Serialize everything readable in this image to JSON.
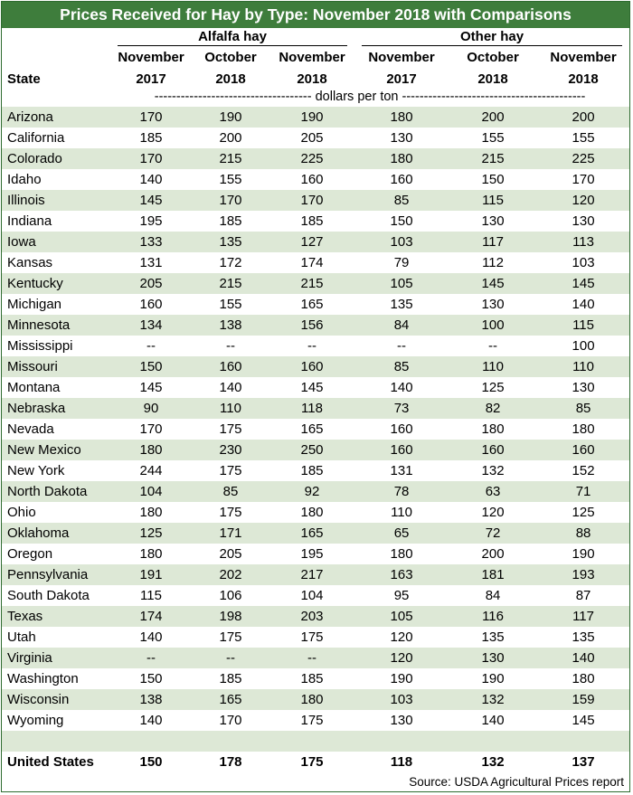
{
  "chart_data": {
    "type": "table",
    "title": "Prices Received for Hay by Type: November 2018 with Comparisons",
    "groups": [
      {
        "label": "Alfalfa hay"
      },
      {
        "label": "Other hay"
      }
    ],
    "state_header": "State",
    "columns": [
      {
        "line1": "November",
        "line2": "2017"
      },
      {
        "line1": "October",
        "line2": "2018"
      },
      {
        "line1": "November",
        "line2": "2018"
      },
      {
        "line1": "November",
        "line2": "2017"
      },
      {
        "line1": "October",
        "line2": "2018"
      },
      {
        "line1": "November",
        "line2": "2018"
      }
    ],
    "units": "------------------------------------ dollars per ton ------------------------------------------",
    "rows": [
      {
        "state": "Arizona",
        "v": [
          "170",
          "190",
          "190",
          "180",
          "200",
          "200"
        ]
      },
      {
        "state": "California",
        "v": [
          "185",
          "200",
          "205",
          "130",
          "155",
          "155"
        ]
      },
      {
        "state": "Colorado",
        "v": [
          "170",
          "215",
          "225",
          "180",
          "215",
          "225"
        ]
      },
      {
        "state": "Idaho",
        "v": [
          "140",
          "155",
          "160",
          "160",
          "150",
          "170"
        ]
      },
      {
        "state": "Illinois",
        "v": [
          "145",
          "170",
          "170",
          "85",
          "115",
          "120"
        ]
      },
      {
        "state": "Indiana",
        "v": [
          "195",
          "185",
          "185",
          "150",
          "130",
          "130"
        ]
      },
      {
        "state": "Iowa",
        "v": [
          "133",
          "135",
          "127",
          "103",
          "117",
          "113"
        ]
      },
      {
        "state": "Kansas",
        "v": [
          "131",
          "172",
          "174",
          "79",
          "112",
          "103"
        ]
      },
      {
        "state": "Kentucky",
        "v": [
          "205",
          "215",
          "215",
          "105",
          "145",
          "145"
        ]
      },
      {
        "state": "Michigan",
        "v": [
          "160",
          "155",
          "165",
          "135",
          "130",
          "140"
        ]
      },
      {
        "state": "Minnesota",
        "v": [
          "134",
          "138",
          "156",
          "84",
          "100",
          "115"
        ]
      },
      {
        "state": "Mississippi",
        "v": [
          "--",
          "--",
          "--",
          "--",
          "--",
          "100"
        ]
      },
      {
        "state": "Missouri",
        "v": [
          "150",
          "160",
          "160",
          "85",
          "110",
          "110"
        ]
      },
      {
        "state": "Montana",
        "v": [
          "145",
          "140",
          "145",
          "140",
          "125",
          "130"
        ]
      },
      {
        "state": "Nebraska",
        "v": [
          "90",
          "110",
          "118",
          "73",
          "82",
          "85"
        ]
      },
      {
        "state": "Nevada",
        "v": [
          "170",
          "175",
          "165",
          "160",
          "180",
          "180"
        ]
      },
      {
        "state": "New Mexico",
        "v": [
          "180",
          "230",
          "250",
          "160",
          "160",
          "160"
        ]
      },
      {
        "state": "New York",
        "v": [
          "244",
          "175",
          "185",
          "131",
          "132",
          "152"
        ]
      },
      {
        "state": "North Dakota",
        "v": [
          "104",
          "85",
          "92",
          "78",
          "63",
          "71"
        ]
      },
      {
        "state": "Ohio",
        "v": [
          "180",
          "175",
          "180",
          "110",
          "120",
          "125"
        ]
      },
      {
        "state": "Oklahoma",
        "v": [
          "125",
          "171",
          "165",
          "65",
          "72",
          "88"
        ]
      },
      {
        "state": "Oregon",
        "v": [
          "180",
          "205",
          "195",
          "180",
          "200",
          "190"
        ]
      },
      {
        "state": "Pennsylvania",
        "v": [
          "191",
          "202",
          "217",
          "163",
          "181",
          "193"
        ]
      },
      {
        "state": "South Dakota",
        "v": [
          "115",
          "106",
          "104",
          "95",
          "84",
          "87"
        ]
      },
      {
        "state": "Texas",
        "v": [
          "174",
          "198",
          "203",
          "105",
          "116",
          "117"
        ]
      },
      {
        "state": "Utah",
        "v": [
          "140",
          "175",
          "175",
          "120",
          "135",
          "135"
        ]
      },
      {
        "state": "Virginia",
        "v": [
          "--",
          "--",
          "--",
          "120",
          "130",
          "140"
        ]
      },
      {
        "state": "Washington",
        "v": [
          "150",
          "185",
          "185",
          "190",
          "190",
          "180"
        ]
      },
      {
        "state": "Wisconsin",
        "v": [
          "138",
          "165",
          "180",
          "103",
          "132",
          "159"
        ]
      },
      {
        "state": "Wyoming",
        "v": [
          "140",
          "170",
          "175",
          "130",
          "140",
          "145"
        ]
      }
    ],
    "total": {
      "state": "United States",
      "v": [
        "150",
        "178",
        "175",
        "118",
        "132",
        "137"
      ]
    },
    "source": "Source: USDA Agricultural Prices report"
  },
  "colors": {
    "title_bg": "#3e7d3c",
    "title_text": "#ffffff",
    "row_shade": "#dde8d6",
    "border": "#2d6b2f"
  }
}
